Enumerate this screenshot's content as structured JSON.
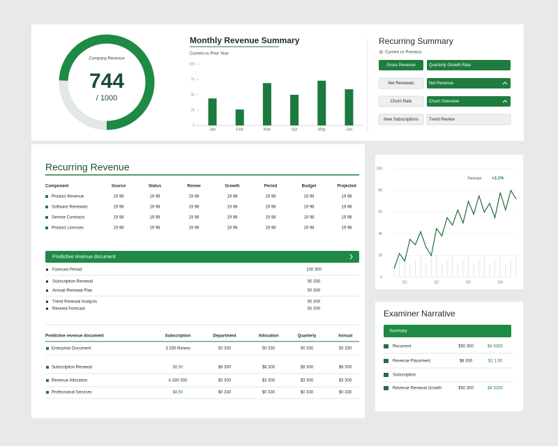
{
  "gauge": {
    "label": "Company Revenue",
    "value": 744,
    "target": {
      "value": 1000,
      "label": "/ 1000"
    },
    "color": "#1e8a45"
  },
  "chart_data": [
    {
      "type": "bar",
      "title": "Monthly Revenue Summary",
      "subtitle": "Current vs Prior Year",
      "categories": [
        "Jan",
        "Feb",
        "Mar",
        "Apr",
        "May",
        "Jun"
      ],
      "values": [
        44,
        26,
        69,
        50,
        73,
        59
      ],
      "color": "#1b7a3e",
      "ylim": [
        0,
        100
      ],
      "yticks": [
        0,
        25,
        50,
        75,
        100
      ],
      "grid": false
    },
    {
      "type": "line",
      "annotation": "Forecast",
      "annotation_value": "+3.1%",
      "categories": [
        null,
        null,
        "Q1",
        null,
        null,
        null,
        null,
        null,
        "Q2",
        null,
        null,
        null,
        null,
        null,
        "Q3",
        null,
        null,
        null,
        null,
        null,
        "Q4",
        null,
        null,
        null
      ],
      "values": [
        8,
        22,
        15,
        35,
        30,
        42,
        28,
        20,
        45,
        38,
        55,
        48,
        62,
        50,
        70,
        58,
        75,
        60,
        68,
        55,
        78,
        62,
        80,
        72
      ],
      "color": "#1e6b3c",
      "ylim": [
        0,
        100
      ],
      "yticks": [
        0,
        20,
        40,
        60,
        80,
        100
      ],
      "grid": true
    }
  ],
  "recurring_summary": {
    "title": "Recurring Summary",
    "subtitle": "Current vs Previous",
    "rows": [
      {
        "left": "Gross Revenue",
        "right": "Quarterly Growth Rate",
        "left_filled": true,
        "right_filled": true
      },
      {
        "left": "Net Renewals",
        "right": "Net Revenue",
        "left_filled": false,
        "right_filled": true
      },
      {
        "left": "Churn Rate",
        "right": "Churn Overview",
        "left_filled": false,
        "right_filled": true
      },
      {
        "left": "New Subscriptions",
        "right": "Trend Review",
        "left_filled": false,
        "right_filled": false
      }
    ]
  },
  "revenue_table": {
    "title": "Recurring Revenue",
    "header": [
      "Component",
      "Source",
      "Status",
      "Renew",
      "Growth",
      "Period",
      "Budget",
      "Projected"
    ],
    "rows": [
      [
        "Product Revenue",
        "19 98",
        "19 98",
        "19 98",
        "19 98",
        "19 98",
        "19 98",
        "19 98"
      ],
      [
        "Software Renewals",
        "19 98",
        "19 98",
        "19 98",
        "19 98",
        "19 98",
        "19 98",
        "19 98"
      ],
      [
        "Service Contracts",
        "19 98",
        "19 98",
        "19 98",
        "19 98",
        "19 98",
        "19 98",
        "19 98"
      ],
      [
        "Product Licenses",
        "19 98",
        "19 98",
        "19 98",
        "19 98",
        "19 98",
        "19 98",
        "19 98"
      ]
    ]
  },
  "forecast": {
    "title": "Predictive revenue document",
    "rows": [
      [
        "Forecast Period",
        "100 300"
      ],
      [
        "Subscription Renewal",
        "50 330"
      ],
      [
        "Annual Renewal Plan",
        "50 300"
      ],
      [
        "Trend Renewal Analysis",
        "50 300"
      ],
      [
        "Revised Forecast",
        "50 300"
      ]
    ]
  },
  "allocation_table": {
    "header": [
      "Predictive revenue document",
      "Subscription",
      "Department",
      "Allocation",
      "Quarterly",
      "Annual"
    ],
    "rows": [
      [
        "Enterprise Document",
        "3 330 Renew",
        "50 330",
        "50 330",
        "50 330",
        "50 330"
      ],
      [
        "Subscription Renewal",
        "$8.50",
        "$8 300",
        "$8 300",
        "$8 300",
        "$8 300"
      ],
      [
        "Revenue Allocation",
        "4 330 300",
        "$3 300",
        "$3 300",
        "$3 300",
        "$3 300"
      ],
      [
        "Professional Services",
        "$8.50",
        "$0 330",
        "$0 330",
        "$0 330",
        "$0 330"
      ]
    ]
  },
  "narrative": {
    "title": "Examiner Narrative",
    "button": "Summary",
    "rows": [
      [
        "Recurrent",
        "$50 300",
        "$4 5330"
      ],
      [
        "Revenue Placement",
        "$8 300",
        "$1 1.50"
      ],
      [
        "Subscription",
        "",
        ""
      ],
      [
        "Revenue Renewal Growth",
        "$50 300",
        "$4 5330"
      ]
    ]
  }
}
